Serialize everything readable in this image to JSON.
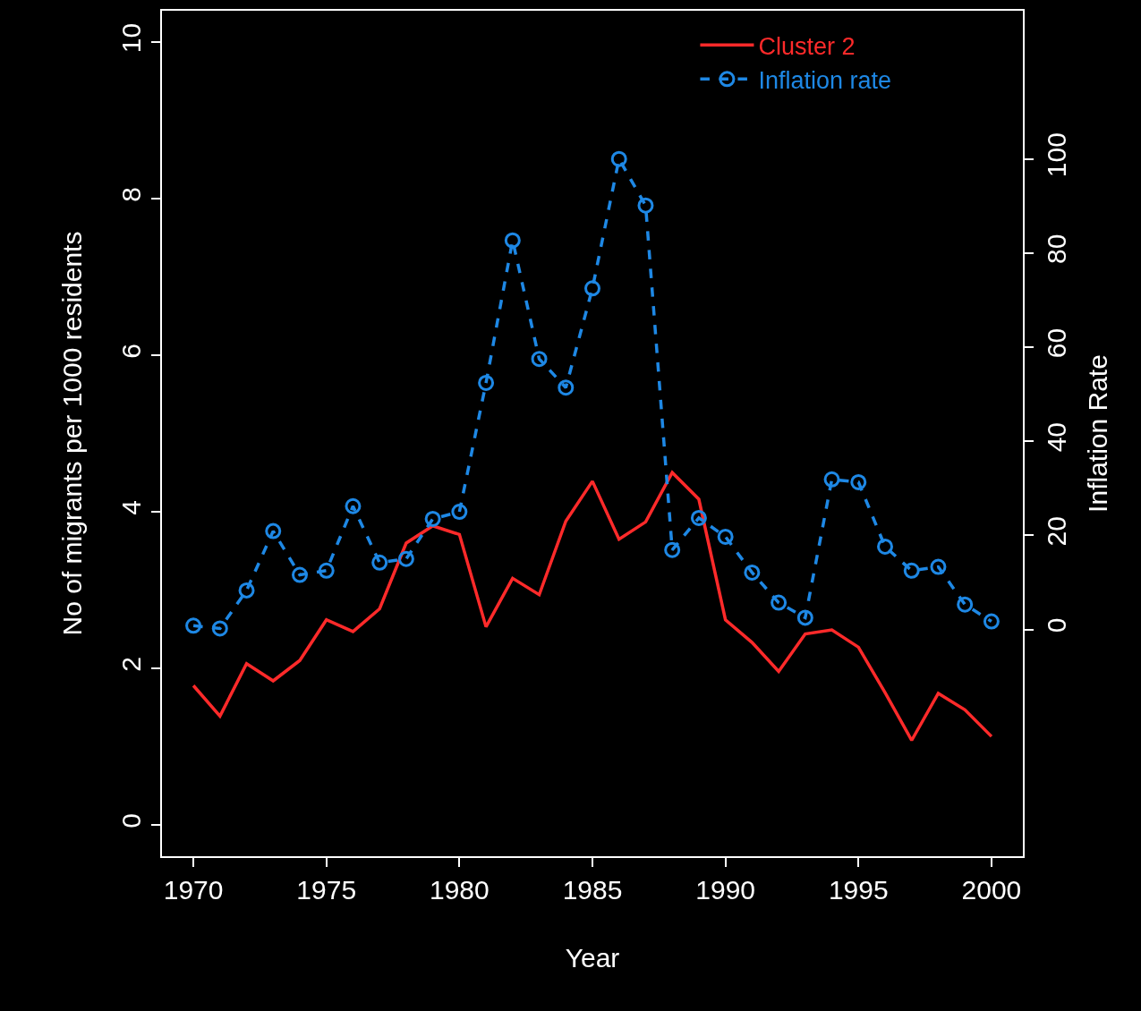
{
  "chart_data": {
    "type": "line",
    "xlabel": "Year",
    "ylabel": "No of migrants per 1000 residents",
    "y2label": "Inflation Rate",
    "x": [
      1970,
      1971,
      1972,
      1973,
      1974,
      1975,
      1976,
      1977,
      1978,
      1979,
      1980,
      1981,
      1982,
      1983,
      1984,
      1985,
      1986,
      1987,
      1988,
      1989,
      1990,
      1991,
      1992,
      1993,
      1994,
      1995,
      1996,
      1997,
      1998,
      1999,
      2000
    ],
    "series": [
      {
        "name": "Cluster 2",
        "color": "#ff2a2a",
        "marker": "none",
        "line_style": "solid",
        "values": [
          1.78,
          1.39,
          2.06,
          1.84,
          2.1,
          2.62,
          2.47,
          2.76,
          3.6,
          3.82,
          3.71,
          2.53,
          3.15,
          2.94,
          3.88,
          4.39,
          3.65,
          3.87,
          4.5,
          4.16,
          2.62,
          2.33,
          1.96,
          2.44,
          2.49,
          2.27,
          1.69,
          1.08,
          1.68,
          1.47,
          1.13
        ]
      },
      {
        "name": "Inflation rate",
        "color": "#1e88e5",
        "marker": "circle",
        "line_style": "dashed",
        "axis": "y2",
        "values": [
          0.8,
          0.2,
          8.3,
          20.9,
          11.6,
          12.5,
          26.2,
          14.2,
          15,
          23.5,
          25,
          52.4,
          82.7,
          57.5,
          51.4,
          72.5,
          100,
          90.1,
          16.9,
          23.7,
          19.7,
          12.1,
          5.7,
          2.5,
          31.9,
          31.3,
          17.6,
          12.5,
          13.3,
          5.3,
          1.7
        ]
      }
    ],
    "xlim": [
      1968.82,
      2001.18
    ],
    "xticks": [
      1970,
      1975,
      1980,
      1985,
      1990,
      1995,
      2000
    ],
    "ylim": [
      -0.4,
      10.4
    ],
    "yticks": [
      0,
      2,
      4,
      6,
      8,
      10
    ],
    "y2lim": [
      -48.2,
      131.5
    ],
    "y2ticks": [
      0,
      20,
      40,
      60,
      80,
      100
    ],
    "grid": false,
    "legend": "top right"
  }
}
